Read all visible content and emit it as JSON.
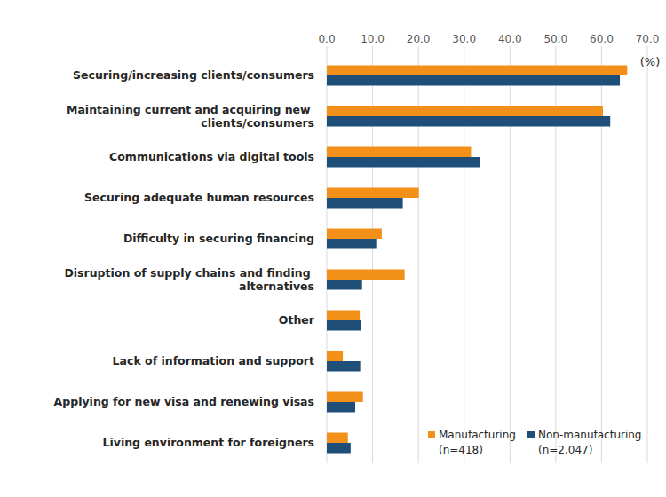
{
  "chart_data": {
    "type": "bar",
    "orientation": "horizontal",
    "xlabel": "(%)",
    "categories": [
      "Securing/increasing clients/consumers",
      "Maintaining current and acquiring new clients/consumers",
      "Communications via digital tools",
      "Securing adequate human resources",
      "Difficulty in securing financing",
      "Disruption of supply chains and finding alternatives",
      "Other",
      "Lack of information and support",
      "Applying for new visa and renewing visas",
      "Living environment for foreigners"
    ],
    "series": [
      {
        "name": "Manufacturing (n=418)",
        "color": "#f39019",
        "values": [
          65.6,
          60.3,
          31.5,
          20.1,
          12.0,
          17.0,
          7.2,
          3.5,
          7.9,
          4.6
        ]
      },
      {
        "name": "Non-manufacturing (n=2,047)",
        "color": "#1f4e79",
        "values": [
          64.0,
          61.9,
          33.5,
          16.6,
          10.8,
          7.7,
          7.5,
          7.3,
          6.2,
          5.2
        ]
      }
    ],
    "xlim": [
      0,
      70
    ],
    "xticks": [
      {
        "value": 0,
        "label": "0.0"
      },
      {
        "value": 10,
        "label": "10.0"
      },
      {
        "value": 20,
        "label": "20.0"
      },
      {
        "value": 30,
        "label": "30.0"
      },
      {
        "value": 40,
        "label": "40.0"
      },
      {
        "value": 50,
        "label": "50.0"
      },
      {
        "value": 60,
        "label": "60.0"
      },
      {
        "value": 70,
        "label": "70.0"
      }
    ],
    "grid": true,
    "legend": "lower right"
  }
}
